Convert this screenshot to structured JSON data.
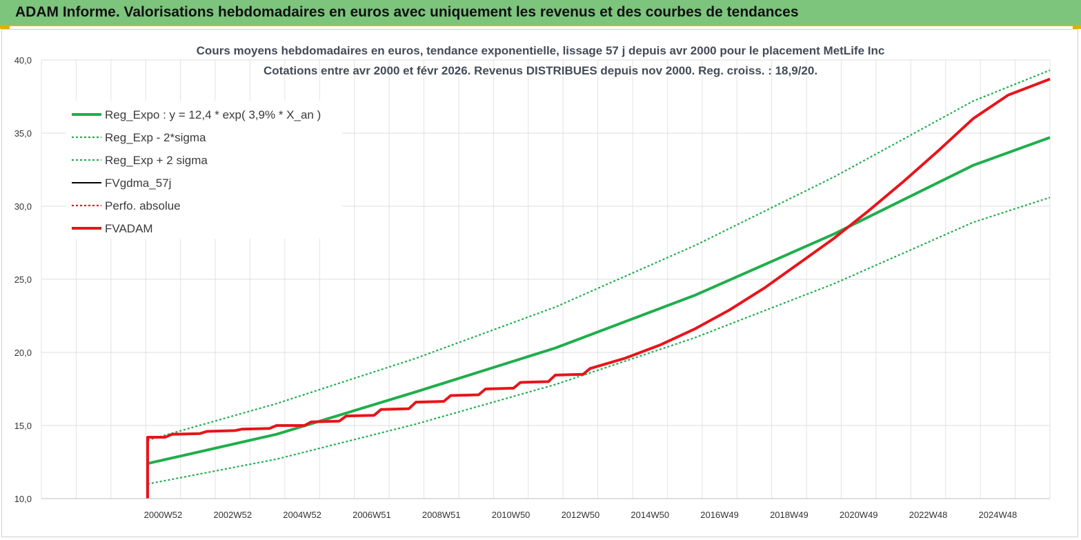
{
  "banner": {
    "title": "ADAM Informe. Valorisations hebdomadaires en euros avec uniquement les revenus et des courbes de tendances"
  },
  "chart_data": {
    "type": "line",
    "title_line1": "Cours moyens hebdomadaires en euros, tendance exponentielle, lissage 57 j depuis avr 2000 pour le placement MetLife Inc",
    "title_line2": "Cotations entre avr 2000 et févr 2026. Revenus DISTRIBUES depuis nov 2000. Reg. croiss. : 18,9/20.",
    "ylim": [
      10,
      40
    ],
    "y_ticks": [
      "10,0",
      "15,0",
      "20,0",
      "25,0",
      "30,0",
      "35,0",
      "40,0"
    ],
    "x_ticks": [
      "2000W52",
      "2002W52",
      "2004W52",
      "2006W51",
      "2008W51",
      "2010W50",
      "2012W50",
      "2014W50",
      "2016W49",
      "2018W49",
      "2020W49",
      "2022W48",
      "2024W48"
    ],
    "x_range": [
      1997.25,
      2026.2
    ],
    "grid": true,
    "legend_position": "top-left",
    "series": [
      {
        "name": "Reg_Expo : y = 12,4 * exp( 3,9% *  X_an )",
        "color": "#1fae4b",
        "style": "solid-thick",
        "points": [
          [
            2000.3,
            12.4
          ],
          [
            2004.0,
            14.4
          ],
          [
            2008.0,
            17.3
          ],
          [
            2012.0,
            20.3
          ],
          [
            2016.0,
            23.9
          ],
          [
            2020.0,
            28.1
          ],
          [
            2024.0,
            32.8
          ],
          [
            2026.2,
            34.7
          ]
        ]
      },
      {
        "name": "Reg_Exp - 2*sigma",
        "color": "#1fae4b",
        "style": "dotted",
        "points": [
          [
            2000.3,
            11.0
          ],
          [
            2004.0,
            12.7
          ],
          [
            2008.0,
            15.1
          ],
          [
            2012.0,
            17.8
          ],
          [
            2016.0,
            21.0
          ],
          [
            2020.0,
            24.7
          ],
          [
            2024.0,
            28.9
          ],
          [
            2026.2,
            30.6
          ]
        ]
      },
      {
        "name": "Reg_Exp + 2 sigma",
        "color": "#1fae4b",
        "style": "dotted",
        "points": [
          [
            2000.3,
            14.0
          ],
          [
            2004.0,
            16.5
          ],
          [
            2008.0,
            19.6
          ],
          [
            2012.0,
            23.1
          ],
          [
            2016.0,
            27.3
          ],
          [
            2020.0,
            32.0
          ],
          [
            2024.0,
            37.2
          ],
          [
            2026.2,
            39.3
          ]
        ]
      },
      {
        "name": "FVgdma_57j",
        "color": "#000000",
        "style": "solid",
        "points": [
          [
            2000.3,
            10.0
          ],
          [
            2000.3,
            14.2
          ],
          [
            2000.8,
            14.2
          ],
          [
            2001.0,
            14.4
          ],
          [
            2001.8,
            14.45
          ],
          [
            2002.0,
            14.6
          ],
          [
            2002.8,
            14.65
          ],
          [
            2003.0,
            14.75
          ],
          [
            2003.8,
            14.8
          ],
          [
            2004.0,
            15.0
          ],
          [
            2004.8,
            15.0
          ],
          [
            2005.0,
            15.25
          ],
          [
            2005.8,
            15.3
          ],
          [
            2006.0,
            15.65
          ],
          [
            2006.8,
            15.7
          ],
          [
            2007.0,
            16.1
          ],
          [
            2007.8,
            16.15
          ],
          [
            2008.0,
            16.6
          ],
          [
            2008.8,
            16.65
          ],
          [
            2009.0,
            17.05
          ],
          [
            2009.8,
            17.1
          ],
          [
            2010.0,
            17.5
          ],
          [
            2010.8,
            17.55
          ],
          [
            2011.0,
            17.95
          ],
          [
            2011.8,
            18.0
          ],
          [
            2012.0,
            18.45
          ],
          [
            2012.8,
            18.5
          ],
          [
            2013.0,
            18.9
          ],
          [
            2014.0,
            19.6
          ],
          [
            2015.0,
            20.5
          ],
          [
            2016.0,
            21.6
          ],
          [
            2017.0,
            22.9
          ],
          [
            2018.0,
            24.4
          ],
          [
            2019.0,
            26.1
          ],
          [
            2020.0,
            27.8
          ],
          [
            2021.0,
            29.7
          ],
          [
            2022.0,
            31.7
          ],
          [
            2023.0,
            33.8
          ],
          [
            2024.0,
            36.0
          ],
          [
            2025.0,
            37.6
          ],
          [
            2026.2,
            38.7
          ]
        ]
      },
      {
        "name": "Perfo. absolue",
        "color": "#e8141b",
        "style": "dotted",
        "points": [
          [
            2000.3,
            10.0
          ],
          [
            2000.3,
            14.2
          ],
          [
            2000.8,
            14.2
          ],
          [
            2001.0,
            14.4
          ],
          [
            2001.8,
            14.45
          ],
          [
            2002.0,
            14.6
          ],
          [
            2002.8,
            14.65
          ],
          [
            2003.0,
            14.75
          ],
          [
            2003.8,
            14.8
          ],
          [
            2004.0,
            15.0
          ],
          [
            2004.8,
            15.0
          ],
          [
            2005.0,
            15.25
          ],
          [
            2005.8,
            15.3
          ],
          [
            2006.0,
            15.65
          ],
          [
            2006.8,
            15.7
          ],
          [
            2007.0,
            16.1
          ],
          [
            2007.8,
            16.15
          ],
          [
            2008.0,
            16.6
          ],
          [
            2008.8,
            16.65
          ],
          [
            2009.0,
            17.05
          ],
          [
            2009.8,
            17.1
          ],
          [
            2010.0,
            17.5
          ],
          [
            2010.8,
            17.55
          ],
          [
            2011.0,
            17.95
          ],
          [
            2011.8,
            18.0
          ],
          [
            2012.0,
            18.45
          ],
          [
            2012.8,
            18.5
          ],
          [
            2013.0,
            18.9
          ],
          [
            2014.0,
            19.6
          ],
          [
            2015.0,
            20.5
          ],
          [
            2016.0,
            21.6
          ],
          [
            2017.0,
            22.9
          ],
          [
            2018.0,
            24.4
          ],
          [
            2019.0,
            26.1
          ],
          [
            2020.0,
            27.8
          ],
          [
            2021.0,
            29.7
          ],
          [
            2022.0,
            31.7
          ],
          [
            2023.0,
            33.8
          ],
          [
            2024.0,
            36.0
          ],
          [
            2025.0,
            37.6
          ],
          [
            2026.2,
            38.7
          ]
        ]
      },
      {
        "name": "FVADAM",
        "color": "#e8141b",
        "style": "solid-thick",
        "points": [
          [
            2000.3,
            10.0
          ],
          [
            2000.3,
            14.2
          ],
          [
            2000.8,
            14.2
          ],
          [
            2001.0,
            14.4
          ],
          [
            2001.8,
            14.45
          ],
          [
            2002.0,
            14.6
          ],
          [
            2002.8,
            14.65
          ],
          [
            2003.0,
            14.75
          ],
          [
            2003.8,
            14.8
          ],
          [
            2004.0,
            15.0
          ],
          [
            2004.8,
            15.0
          ],
          [
            2005.0,
            15.25
          ],
          [
            2005.8,
            15.3
          ],
          [
            2006.0,
            15.65
          ],
          [
            2006.8,
            15.7
          ],
          [
            2007.0,
            16.1
          ],
          [
            2007.8,
            16.15
          ],
          [
            2008.0,
            16.6
          ],
          [
            2008.8,
            16.65
          ],
          [
            2009.0,
            17.05
          ],
          [
            2009.8,
            17.1
          ],
          [
            2010.0,
            17.5
          ],
          [
            2010.8,
            17.55
          ],
          [
            2011.0,
            17.95
          ],
          [
            2011.8,
            18.0
          ],
          [
            2012.0,
            18.45
          ],
          [
            2012.8,
            18.5
          ],
          [
            2013.0,
            18.9
          ],
          [
            2014.0,
            19.6
          ],
          [
            2015.0,
            20.5
          ],
          [
            2016.0,
            21.6
          ],
          [
            2017.0,
            22.9
          ],
          [
            2018.0,
            24.4
          ],
          [
            2019.0,
            26.1
          ],
          [
            2020.0,
            27.8
          ],
          [
            2021.0,
            29.7
          ],
          [
            2022.0,
            31.7
          ],
          [
            2023.0,
            33.8
          ],
          [
            2024.0,
            36.0
          ],
          [
            2025.0,
            37.6
          ],
          [
            2026.2,
            38.7
          ]
        ]
      }
    ]
  }
}
